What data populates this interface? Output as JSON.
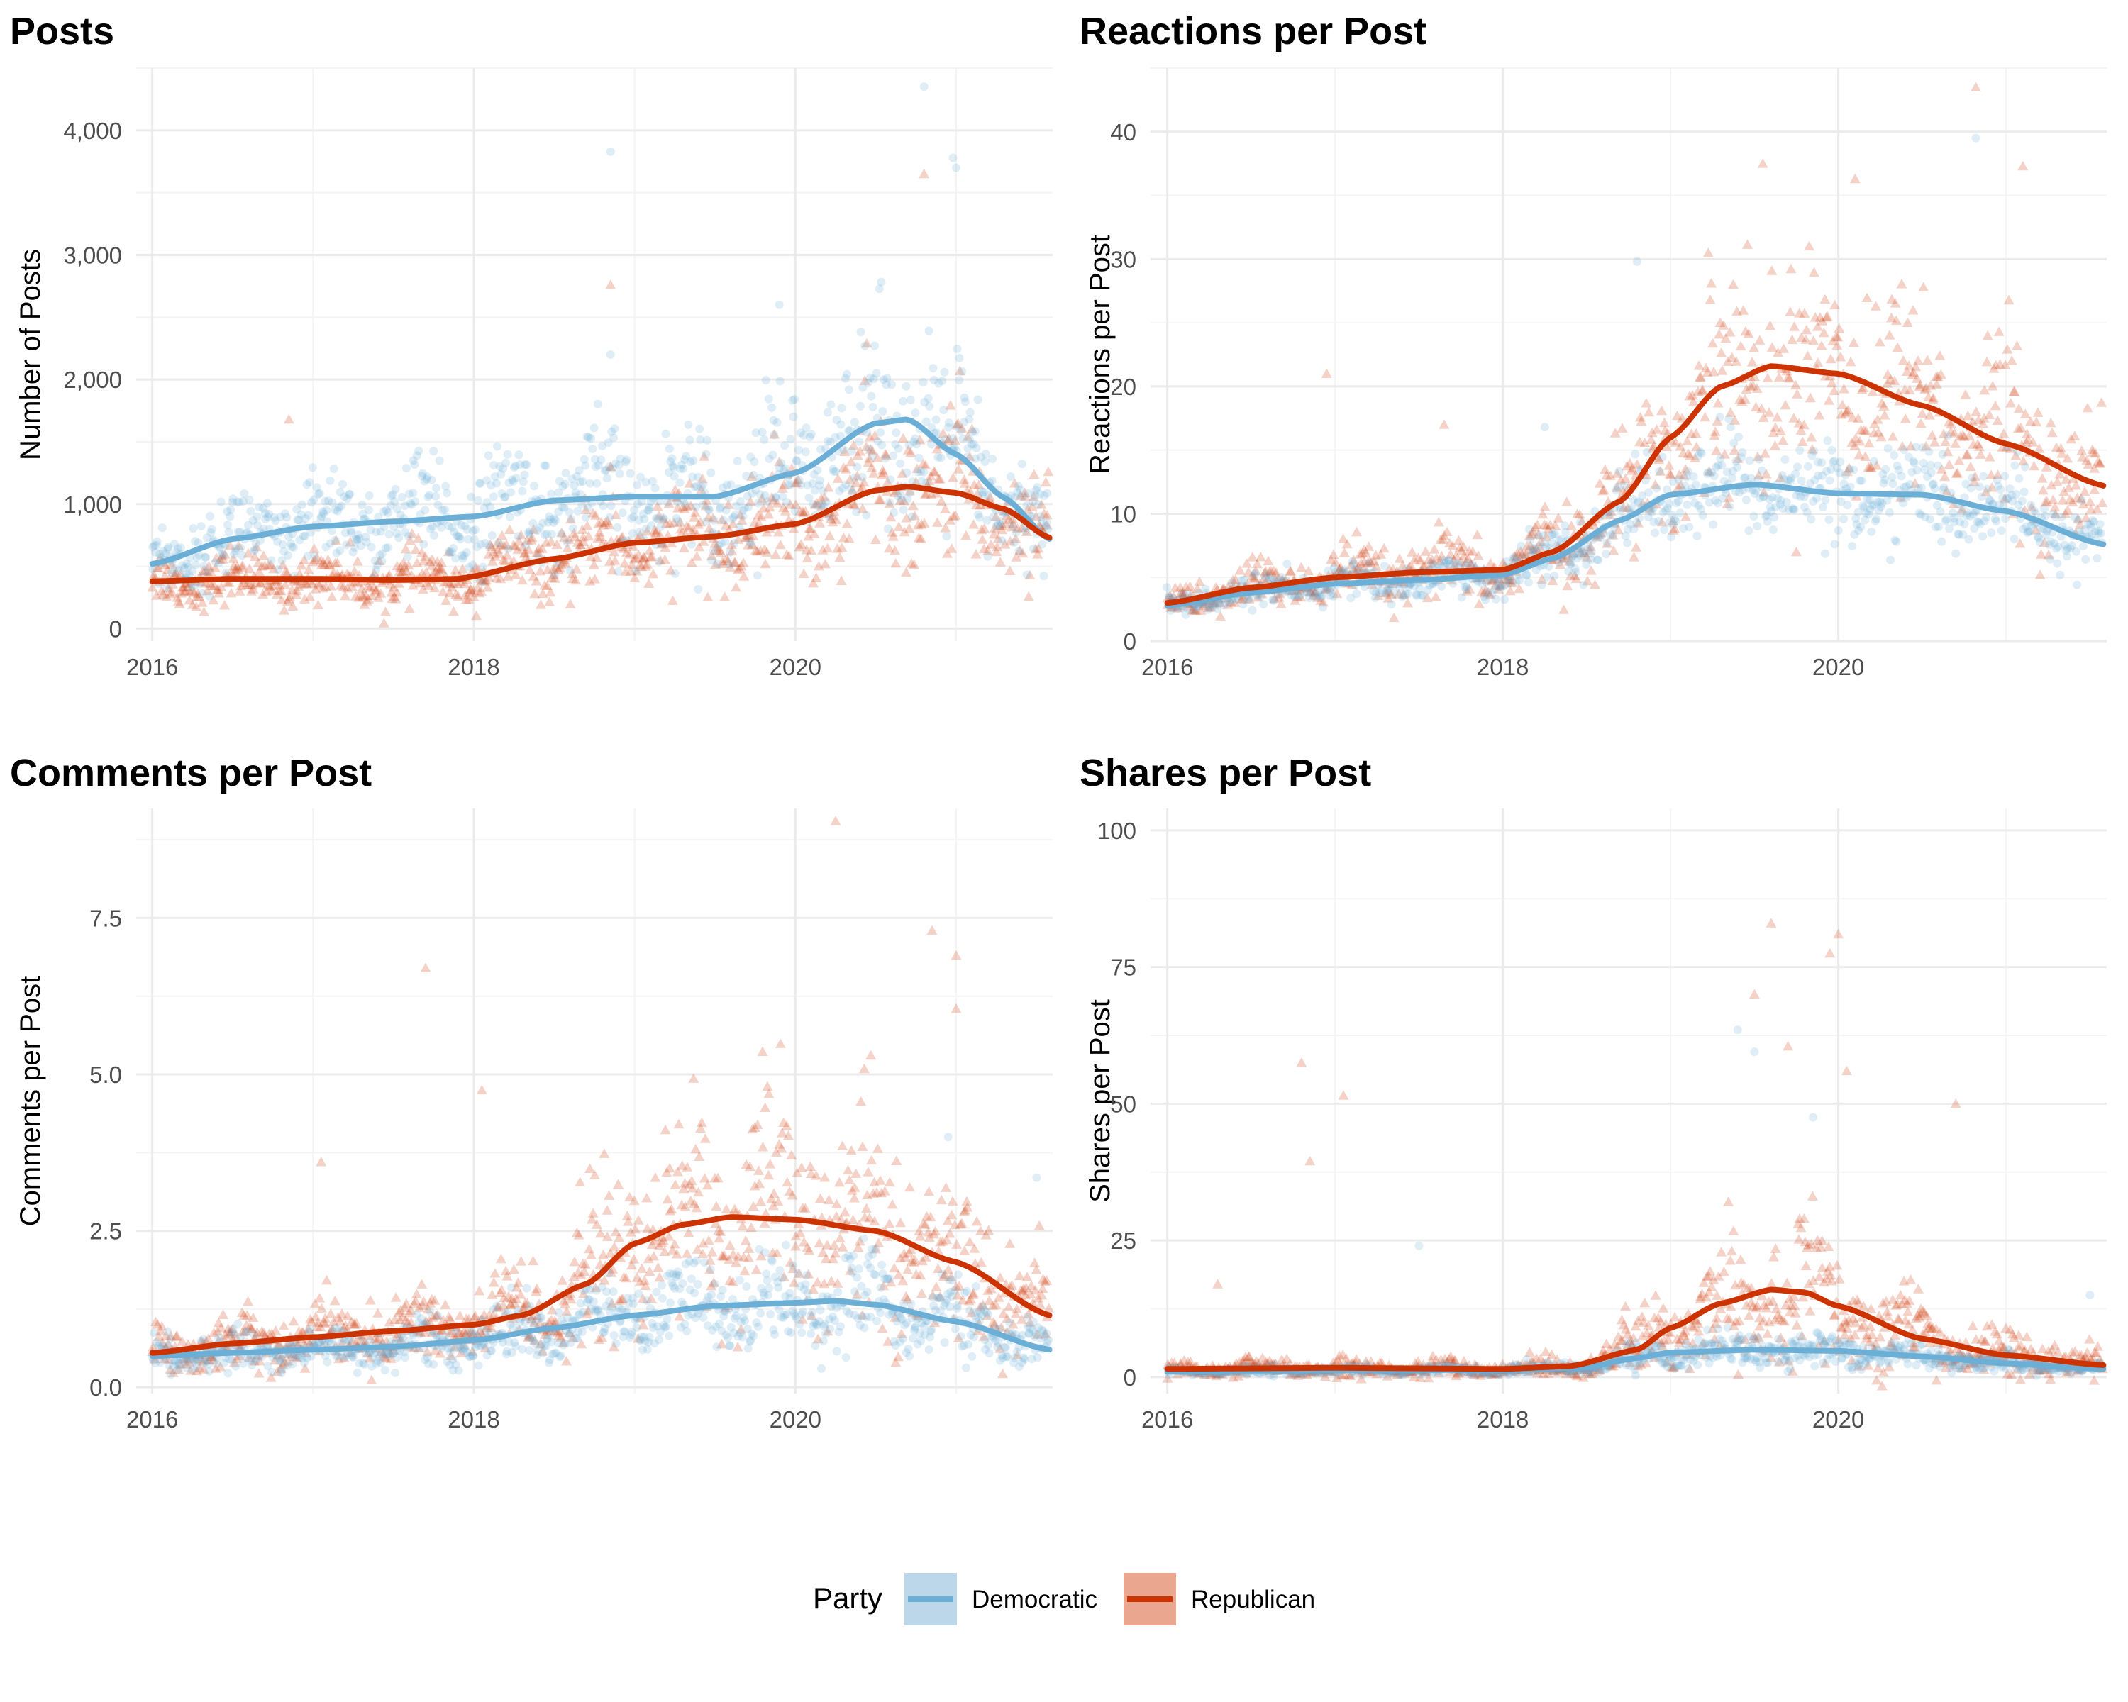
{
  "colors": {
    "democratic": "#6baed6",
    "republican": "#cc3300",
    "grid_major": "#ebebeb",
    "grid_minor": "#f4f4f4"
  },
  "legend": {
    "title": "Party",
    "items": [
      {
        "label": "Democratic",
        "color": "#6baed6",
        "fill": "#bcd6ea"
      },
      {
        "label": "Republican",
        "color": "#cc3300",
        "fill": "#eba68f"
      }
    ]
  },
  "chart_data": [
    {
      "type": "scatter",
      "title": "Posts",
      "ylabel": "Number of Posts",
      "xlim": [
        2015.9,
        2021.6
      ],
      "ylim": [
        -100,
        4500
      ],
      "xticks": [
        2016,
        2018,
        2020
      ],
      "xtick_labels": [
        "2016",
        "2018",
        "2020"
      ],
      "yticks": [
        0,
        1000,
        2000,
        3000,
        4000
      ],
      "ytick_labels": [
        "0",
        "1,000",
        "2,000",
        "3,000",
        "4,000"
      ],
      "series": [
        {
          "name": "Democratic",
          "x": [
            2016.0,
            2016.5,
            2017.0,
            2017.5,
            2018.0,
            2018.5,
            2019.0,
            2019.5,
            2020.0,
            2020.5,
            2020.7,
            2021.0,
            2021.3,
            2021.58
          ],
          "y": [
            520,
            720,
            820,
            860,
            900,
            1030,
            1060,
            1060,
            1250,
            1650,
            1680,
            1400,
            1050,
            720
          ],
          "noise": 0.22
        },
        {
          "name": "Republican",
          "x": [
            2016.0,
            2016.5,
            2017.0,
            2017.5,
            2017.9,
            2018.5,
            2019.0,
            2019.5,
            2020.0,
            2020.5,
            2020.7,
            2021.0,
            2021.3,
            2021.58
          ],
          "y": [
            380,
            400,
            400,
            390,
            400,
            560,
            690,
            740,
            840,
            1110,
            1140,
            1090,
            960,
            730
          ],
          "noise": 0.25
        }
      ],
      "outliers": [
        {
          "series": "Democratic",
          "x": 2018.85,
          "y": 3830
        },
        {
          "series": "Democratic",
          "x": 2020.8,
          "y": 4350
        },
        {
          "series": "Democratic",
          "x": 2020.98,
          "y": 3780
        },
        {
          "series": "Democratic",
          "x": 2019.9,
          "y": 2600
        },
        {
          "series": "Democratic",
          "x": 2021.0,
          "y": 3700
        },
        {
          "series": "Democratic",
          "x": 2018.85,
          "y": 2200
        },
        {
          "series": "Republican",
          "x": 2018.85,
          "y": 2760
        },
        {
          "series": "Republican",
          "x": 2020.8,
          "y": 3650
        },
        {
          "series": "Republican",
          "x": 2016.85,
          "y": 1680
        },
        {
          "series": "Republican",
          "x": 2018.85,
          "y": 1300
        }
      ]
    },
    {
      "type": "scatter",
      "title": "Reactions per Post",
      "ylabel": "Reactions per Post",
      "xlim": [
        2015.9,
        2021.6
      ],
      "ylim": [
        0,
        45
      ],
      "xticks": [
        2016,
        2018,
        2020
      ],
      "xtick_labels": [
        "2016",
        "2018",
        "2020"
      ],
      "yticks": [
        0,
        10,
        20,
        30,
        40
      ],
      "ytick_labels": [
        "0",
        "10",
        "20",
        "30",
        "40"
      ],
      "series": [
        {
          "name": "Democratic",
          "x": [
            2016.0,
            2016.5,
            2017.0,
            2017.5,
            2018.0,
            2018.3,
            2018.7,
            2019.0,
            2019.5,
            2020.0,
            2020.5,
            2021.0,
            2021.58
          ],
          "y": [
            2.8,
            3.8,
            4.5,
            4.8,
            5.2,
            6.5,
            9.5,
            11.5,
            12.3,
            11.6,
            11.5,
            10.2,
            7.6
          ],
          "noise": 0.15
        },
        {
          "name": "Republican",
          "x": [
            2016.0,
            2016.5,
            2017.0,
            2017.5,
            2018.0,
            2018.3,
            2018.7,
            2019.0,
            2019.3,
            2019.6,
            2020.0,
            2020.5,
            2021.0,
            2021.58
          ],
          "y": [
            3.0,
            4.2,
            5.0,
            5.4,
            5.6,
            7.0,
            11.0,
            16.0,
            20.0,
            21.6,
            21.0,
            18.5,
            15.5,
            12.2
          ],
          "noise": 0.2
        }
      ],
      "outliers": [
        {
          "series": "Republican",
          "x": 2020.82,
          "y": 43.5
        },
        {
          "series": "Democratic",
          "x": 2020.82,
          "y": 39.5
        },
        {
          "series": "Republican",
          "x": 2019.55,
          "y": 37.5
        },
        {
          "series": "Republican",
          "x": 2021.1,
          "y": 37.3
        },
        {
          "series": "Republican",
          "x": 2020.1,
          "y": 36.3
        },
        {
          "series": "Democratic",
          "x": 2018.8,
          "y": 29.8
        },
        {
          "series": "Republican",
          "x": 2016.95,
          "y": 21.0
        },
        {
          "series": "Republican",
          "x": 2017.65,
          "y": 17.0
        },
        {
          "series": "Democratic",
          "x": 2018.25,
          "y": 16.8
        }
      ]
    },
    {
      "type": "scatter",
      "title": "Comments per Post",
      "ylabel": "Comments per Post",
      "xlim": [
        2015.9,
        2021.6
      ],
      "ylim": [
        -0.1,
        9.25
      ],
      "xticks": [
        2016,
        2018,
        2020
      ],
      "xtick_labels": [
        "2016",
        "2018",
        "2020"
      ],
      "yticks": [
        0,
        2.5,
        5,
        7.5
      ],
      "ytick_labels": [
        "0.0",
        "2.5",
        "5.0",
        "7.5"
      ],
      "series": [
        {
          "name": "Democratic",
          "x": [
            2016.0,
            2016.5,
            2017.0,
            2017.5,
            2018.0,
            2018.5,
            2019.0,
            2019.5,
            2020.0,
            2020.25,
            2020.5,
            2021.0,
            2021.58
          ],
          "y": [
            0.5,
            0.55,
            0.6,
            0.65,
            0.75,
            0.95,
            1.15,
            1.3,
            1.35,
            1.38,
            1.32,
            1.05,
            0.6
          ],
          "noise": 0.25
        },
        {
          "name": "Republican",
          "x": [
            2016.0,
            2016.5,
            2017.0,
            2017.5,
            2018.0,
            2018.3,
            2018.7,
            2019.0,
            2019.3,
            2019.6,
            2020.0,
            2020.5,
            2021.0,
            2021.58
          ],
          "y": [
            0.55,
            0.7,
            0.8,
            0.9,
            1.0,
            1.15,
            1.65,
            2.3,
            2.6,
            2.72,
            2.68,
            2.5,
            2.0,
            1.15
          ],
          "noise": 0.3
        }
      ],
      "outliers": [
        {
          "series": "Republican",
          "x": 2020.25,
          "y": 9.05
        },
        {
          "series": "Republican",
          "x": 2020.85,
          "y": 7.3
        },
        {
          "series": "Republican",
          "x": 2021.0,
          "y": 6.9
        },
        {
          "series": "Republican",
          "x": 2017.7,
          "y": 6.7
        },
        {
          "series": "Republican",
          "x": 2021.0,
          "y": 6.05
        },
        {
          "series": "Republican",
          "x": 2018.05,
          "y": 4.75
        },
        {
          "series": "Democratic",
          "x": 2020.95,
          "y": 4.0
        },
        {
          "series": "Republican",
          "x": 2017.05,
          "y": 3.6
        },
        {
          "series": "Democratic",
          "x": 2021.5,
          "y": 3.35
        }
      ]
    },
    {
      "type": "scatter",
      "title": "Shares per Post",
      "ylabel": "Shares per Post",
      "xlim": [
        2015.9,
        2021.6
      ],
      "ylim": [
        -3,
        104
      ],
      "xticks": [
        2016,
        2018,
        2020
      ],
      "xtick_labels": [
        "2016",
        "2018",
        "2020"
      ],
      "yticks": [
        0,
        25,
        50,
        75,
        100
      ],
      "ytick_labels": [
        "0",
        "25",
        "50",
        "75",
        "100"
      ],
      "series": [
        {
          "name": "Democratic",
          "x": [
            2016.0,
            2016.5,
            2017.0,
            2017.5,
            2018.0,
            2018.5,
            2018.8,
            2019.0,
            2019.5,
            2020.0,
            2020.5,
            2021.0,
            2021.58
          ],
          "y": [
            1.0,
            1.2,
            1.3,
            1.3,
            1.3,
            1.8,
            3.5,
            4.5,
            5.0,
            4.8,
            3.8,
            2.5,
            1.5
          ],
          "noise": 0.3
        },
        {
          "name": "Republican",
          "x": [
            2016.0,
            2016.5,
            2017.0,
            2017.5,
            2018.0,
            2018.4,
            2018.8,
            2019.0,
            2019.3,
            2019.6,
            2019.8,
            2020.0,
            2020.5,
            2021.0,
            2021.58
          ],
          "y": [
            1.5,
            1.6,
            1.7,
            1.6,
            1.5,
            2.0,
            5.0,
            9.0,
            13.5,
            16.0,
            15.5,
            13.0,
            7.0,
            4.0,
            2.2
          ],
          "noise": 0.45
        }
      ],
      "outliers": [
        {
          "series": "Republican",
          "x": 2019.6,
          "y": 83
        },
        {
          "series": "Republican",
          "x": 2020.0,
          "y": 81
        },
        {
          "series": "Republican",
          "x": 2019.95,
          "y": 77.5
        },
        {
          "series": "Republican",
          "x": 2019.5,
          "y": 70
        },
        {
          "series": "Democratic",
          "x": 2019.4,
          "y": 63.5
        },
        {
          "series": "Republican",
          "x": 2019.7,
          "y": 60.5
        },
        {
          "series": "Democratic",
          "x": 2019.5,
          "y": 59.5
        },
        {
          "series": "Republican",
          "x": 2016.8,
          "y": 57.5
        },
        {
          "series": "Republican",
          "x": 2020.05,
          "y": 56
        },
        {
          "series": "Republican",
          "x": 2017.05,
          "y": 51.5
        },
        {
          "series": "Republican",
          "x": 2020.7,
          "y": 50
        },
        {
          "series": "Democratic",
          "x": 2019.85,
          "y": 47.5
        },
        {
          "series": "Republican",
          "x": 2016.85,
          "y": 39.5
        },
        {
          "series": "Democratic",
          "x": 2017.5,
          "y": 24
        },
        {
          "series": "Republican",
          "x": 2016.3,
          "y": 17
        },
        {
          "series": "Democratic",
          "x": 2021.5,
          "y": 15
        }
      ]
    }
  ]
}
